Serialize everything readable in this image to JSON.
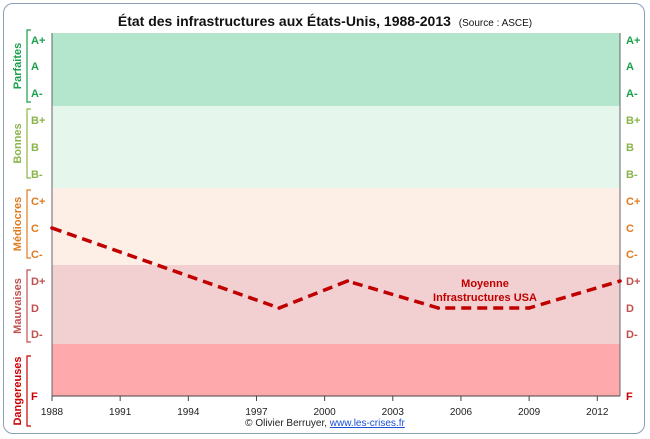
{
  "chart_data": {
    "type": "line",
    "title": "État des infrastructures aux États-Unis, 1988-2013",
    "subtitle": "(Source : ASCE)",
    "credit_prefix": "© Olivier Berruyer,",
    "credit_link": "www.les-crises.fr",
    "x_ticks": [
      "1988",
      "1991",
      "1994",
      "1997",
      "2000",
      "2003",
      "2006",
      "2009",
      "2012"
    ],
    "xlim": [
      1988,
      2013
    ],
    "bands": [
      {
        "name": "Parfaites",
        "grades": [
          "A+",
          "A",
          "A-"
        ],
        "fill": "#b3e6cc",
        "color": "#1aa04a"
      },
      {
        "name": "Bonnes",
        "grades": [
          "B+",
          "B",
          "B-"
        ],
        "fill": "#e5f6ed",
        "color": "#8ab54a"
      },
      {
        "name": "Médiocres",
        "grades": [
          "C+",
          "C",
          "C-"
        ],
        "fill": "#fdeee6",
        "color": "#e07a20"
      },
      {
        "name": "Mauvaises",
        "grades": [
          "D+",
          "D",
          "D-"
        ],
        "fill": "#f2cfd0",
        "color": "#c0504d"
      },
      {
        "name": "Dangereuses",
        "grades": [
          "F"
        ],
        "fill": "#fea9ab",
        "color": "#cc0000"
      }
    ],
    "series": [
      {
        "name": "Moyenne Infrastructures USA",
        "color": "#c00000",
        "x": [
          1988,
          1998,
          2001,
          2005,
          2009,
          2013
        ],
        "y": [
          "C",
          "D",
          "D+",
          "D",
          "D",
          "D+"
        ]
      }
    ],
    "annotation_lines": [
      "Moyenne",
      "Infrastructures USA"
    ]
  }
}
